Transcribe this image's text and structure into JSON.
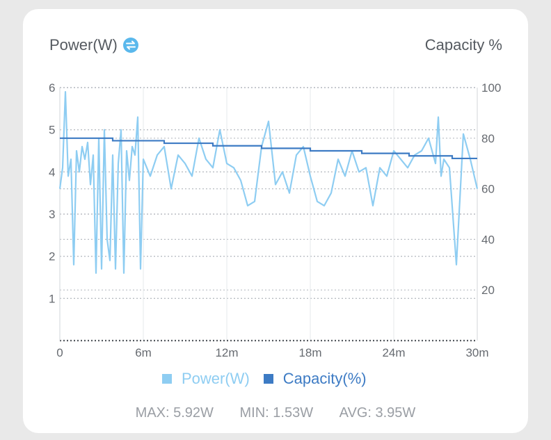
{
  "header": {
    "left_title": "Power(W)",
    "right_title": "Capacity %",
    "swap_icon": "swap-arrows-icon"
  },
  "colors": {
    "power": "#8ecdf2",
    "capacity": "#3d7bc4",
    "grid": "#b8bcc2",
    "icon": "#5ab8ec"
  },
  "chart_data": {
    "type": "line",
    "x_ticks": [
      "0",
      "6m",
      "12m",
      "18m",
      "24m",
      "30m"
    ],
    "x_range_minutes": [
      0,
      30
    ],
    "y_left_ticks": [
      "1",
      "2",
      "3",
      "4",
      "5",
      "6"
    ],
    "y_left_range": [
      0,
      6
    ],
    "y_right_ticks": [
      "20",
      "40",
      "60",
      "80",
      "100"
    ],
    "y_right_range": [
      0,
      100
    ],
    "grid": "dashed",
    "series": [
      {
        "name": "Power(W)",
        "axis": "left",
        "x": [
          0,
          0.2,
          0.4,
          0.6,
          0.8,
          1.0,
          1.2,
          1.4,
          1.6,
          1.8,
          2.0,
          2.2,
          2.4,
          2.6,
          2.8,
          3.0,
          3.2,
          3.4,
          3.6,
          3.8,
          4.0,
          4.2,
          4.4,
          4.6,
          4.8,
          5.0,
          5.2,
          5.4,
          5.6,
          5.8,
          6.0,
          6.5,
          7.0,
          7.5,
          8.0,
          8.5,
          9.0,
          9.5,
          10.0,
          10.5,
          11.0,
          11.5,
          12.0,
          12.5,
          13.0,
          13.5,
          14.0,
          14.5,
          15.0,
          15.5,
          16.0,
          16.5,
          17.0,
          17.5,
          18.0,
          18.5,
          19.0,
          19.5,
          20.0,
          20.5,
          21.0,
          21.5,
          22.0,
          22.5,
          23.0,
          23.5,
          24.0,
          24.5,
          25.0,
          25.5,
          26.0,
          26.5,
          27.0,
          27.2,
          27.4,
          27.6,
          28.0,
          28.5,
          29.0,
          29.5,
          30.0
        ],
        "values": [
          3.6,
          4.1,
          5.9,
          3.9,
          4.3,
          1.8,
          4.5,
          4.0,
          4.6,
          4.3,
          4.7,
          3.7,
          4.4,
          1.6,
          4.8,
          1.7,
          5.0,
          2.4,
          1.9,
          4.4,
          1.7,
          4.2,
          5.0,
          1.6,
          4.5,
          3.8,
          4.6,
          4.4,
          5.3,
          1.7,
          4.3,
          3.9,
          4.4,
          4.6,
          3.6,
          4.4,
          4.2,
          3.9,
          4.8,
          4.3,
          4.1,
          5.0,
          4.2,
          4.1,
          3.8,
          3.2,
          3.3,
          4.6,
          5.2,
          3.7,
          4.0,
          3.5,
          4.4,
          4.6,
          3.9,
          3.3,
          3.2,
          3.5,
          4.3,
          3.9,
          4.5,
          4.0,
          4.1,
          3.2,
          4.1,
          3.9,
          4.5,
          4.3,
          4.1,
          4.4,
          4.5,
          4.8,
          4.2,
          5.3,
          3.9,
          4.3,
          4.1,
          1.8,
          4.9,
          4.3,
          3.6
        ]
      },
      {
        "name": "Capacity(%)",
        "axis": "right",
        "x": [
          0,
          3.8,
          7.5,
          11,
          14.5,
          18,
          21.7,
          25.1,
          28.2,
          30
        ],
        "values": [
          80,
          79,
          78,
          77,
          76,
          75,
          74,
          73,
          72,
          72
        ]
      }
    ]
  },
  "legend": {
    "power_label": "Power(W)",
    "capacity_label": "Capacity(%)"
  },
  "stats": {
    "max": "MAX: 5.92W",
    "min": "MIN: 1.53W",
    "avg": "AVG: 3.95W"
  }
}
